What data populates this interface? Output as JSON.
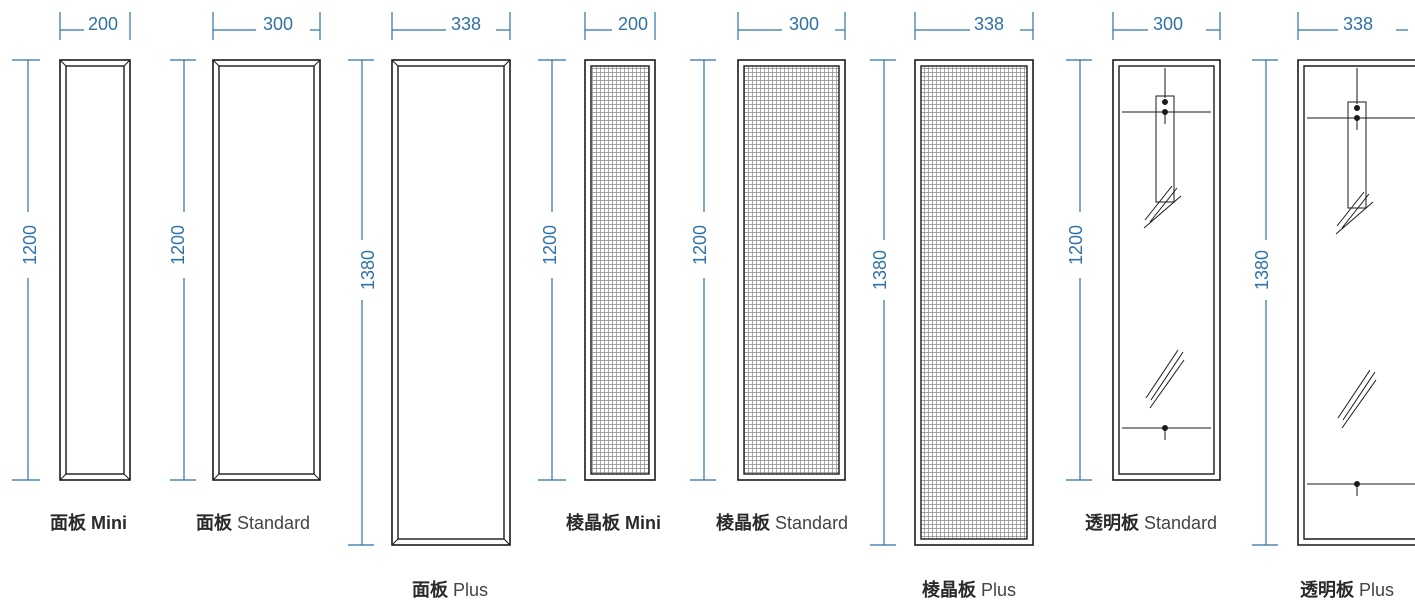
{
  "panels": [
    {
      "name": "面板",
      "model": "Mini",
      "width": "200",
      "height": "1200",
      "model_bold": true
    },
    {
      "name": "面板",
      "model": "Standard",
      "width": "300",
      "height": "1200",
      "model_bold": false
    },
    {
      "name": "面板",
      "model": "Plus",
      "width": "338",
      "height": "1380",
      "model_bold": false
    },
    {
      "name": "棱晶板",
      "model": "Mini",
      "width": "200",
      "height": "1200",
      "model_bold": true
    },
    {
      "name": "棱晶板",
      "model": "Standard",
      "width": "300",
      "height": "1200",
      "model_bold": false
    },
    {
      "name": "棱晶板",
      "model": "Plus",
      "width": "338",
      "height": "1380",
      "model_bold": false
    },
    {
      "name": "透明板",
      "model": "Standard",
      "width": "300",
      "height": "1200",
      "model_bold": false
    },
    {
      "name": "透明板",
      "model": "Plus",
      "width": "338",
      "height": "1380",
      "model_bold": false
    }
  ],
  "colors": {
    "dimension": "#2f72a8",
    "outline": "#1a1a1a"
  }
}
